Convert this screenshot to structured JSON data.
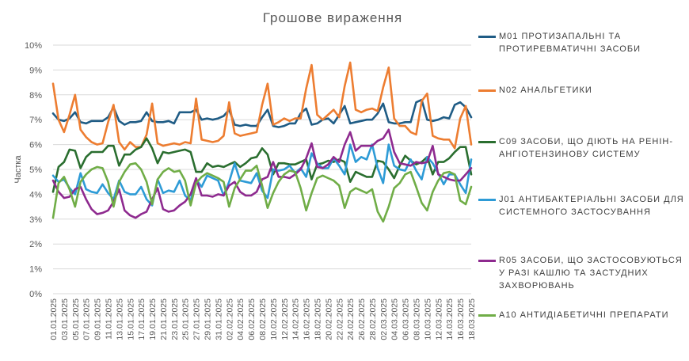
{
  "chart_data": {
    "type": "line",
    "title": "Грошове вираження",
    "ylabel": "Частка",
    "xlabel": "",
    "ylim": [
      0,
      10
    ],
    "y_ticks": [
      "0%",
      "1%",
      "2%",
      "3%",
      "4%",
      "5%",
      "6%",
      "7%",
      "8%",
      "9%",
      "10%"
    ],
    "grid": true,
    "legend_position": "right",
    "x": [
      "01.01.2025",
      "02.01.2025",
      "03.01.2025",
      "04.01.2025",
      "05.01.2025",
      "06.01.2025",
      "07.01.2025",
      "08.01.2025",
      "09.01.2025",
      "10.01.2025",
      "11.01.2025",
      "12.01.2025",
      "13.01.2025",
      "14.01.2025",
      "15.01.2025",
      "16.01.2025",
      "17.01.2025",
      "18.01.2025",
      "19.01.2025",
      "20.01.2025",
      "21.01.2025",
      "22.01.2025",
      "23.01.2025",
      "24.01.2025",
      "25.01.2025",
      "26.01.2025",
      "27.01.2025",
      "28.01.2025",
      "29.01.2025",
      "30.01.2025",
      "31.01.2025",
      "01.02.2025",
      "02.02.2025",
      "03.02.2025",
      "04.02.2025",
      "05.02.2025",
      "06.02.2025",
      "07.02.2025",
      "08.02.2025",
      "09.02.2025",
      "10.02.2025",
      "11.02.2025",
      "12.02.2025",
      "13.02.2025",
      "14.02.2025",
      "15.02.2025",
      "16.02.2025",
      "17.02.2025",
      "18.02.2025",
      "19.02.2025",
      "20.02.2025",
      "21.02.2025",
      "22.02.2025",
      "23.02.2025",
      "24.02.2025",
      "25.02.2025",
      "26.02.2025",
      "27.02.2025",
      "28.02.2025",
      "01.03.2025",
      "02.03.2025",
      "03.03.2025",
      "04.03.2025",
      "05.03.2025",
      "06.03.2025",
      "07.03.2025",
      "08.03.2025",
      "09.03.2025",
      "10.03.2025",
      "11.03.2025",
      "12.03.2025",
      "13.03.2025",
      "14.03.2025",
      "15.03.2025",
      "16.03.2025",
      "17.03.2025",
      "18.03.2025"
    ],
    "x_tick_labels": [
      "01.01.2025",
      "03.01.2025",
      "05.01.2025",
      "07.01.2025",
      "09.01.2025",
      "11.01.2025",
      "13.01.2025",
      "15.01.2025",
      "17.01.2025",
      "19.01.2025",
      "21.01.2025",
      "23.01.2025",
      "25.01.2025",
      "27.01.2025",
      "29.01.2025",
      "31.01.2025",
      "02.02.2025",
      "04.02.2025",
      "06.02.2025",
      "08.02.2025",
      "10.02.2025",
      "12.02.2025",
      "14.02.2025",
      "16.02.2025",
      "18.02.2025",
      "20.02.2025",
      "22.02.2025",
      "24.02.2025",
      "26.02.2025",
      "28.02.2025",
      "02.03.2025",
      "04.03.2025",
      "06.03.2025",
      "08.03.2025",
      "10.03.2025",
      "12.03.2025",
      "14.03.2025",
      "16.03.2025",
      "18.03.2025"
    ],
    "series": [
      {
        "name": "M01 ПРОТИЗАПАЛЬНІ ТА ПРОТИРЕВМАТИЧНІ ЗАСОБИ",
        "color": "#1f5c85",
        "values": [
          7.25,
          7.0,
          6.95,
          7.05,
          7.3,
          6.9,
          6.85,
          6.95,
          6.95,
          6.95,
          7.1,
          7.5,
          6.95,
          6.8,
          6.9,
          6.9,
          6.95,
          7.3,
          6.95,
          6.9,
          6.9,
          6.95,
          6.85,
          7.3,
          7.3,
          7.3,
          7.4,
          7.0,
          7.05,
          7.0,
          7.05,
          7.15,
          7.4,
          6.8,
          6.75,
          6.8,
          6.75,
          6.75,
          7.1,
          7.4,
          6.75,
          6.7,
          6.75,
          6.85,
          6.85,
          7.25,
          7.45,
          6.8,
          6.85,
          7.0,
          7.05,
          6.85,
          7.2,
          7.55,
          6.85,
          6.9,
          6.95,
          7.0,
          7.0,
          7.25,
          7.65,
          6.9,
          6.85,
          6.85,
          6.9,
          6.9,
          7.7,
          7.8,
          7.0,
          6.95,
          7.0,
          7.1,
          7.05,
          7.6,
          7.7,
          7.5,
          7.1
        ]
      },
      {
        "name": "N02 АНАЛЬГЕТИКИ",
        "color": "#ed7d31",
        "values": [
          8.45,
          7.0,
          6.5,
          7.2,
          8.0,
          6.6,
          6.3,
          6.1,
          6.0,
          6.05,
          6.9,
          7.6,
          6.1,
          5.8,
          6.1,
          5.9,
          5.9,
          6.4,
          7.65,
          6.05,
          5.95,
          6.0,
          6.05,
          6.0,
          6.1,
          6.05,
          7.85,
          6.2,
          6.15,
          6.1,
          6.15,
          6.35,
          7.7,
          6.45,
          6.35,
          6.4,
          6.45,
          6.5,
          7.6,
          8.45,
          6.8,
          6.9,
          7.05,
          6.95,
          7.05,
          7.05,
          8.25,
          9.2,
          7.2,
          7.0,
          7.2,
          7.4,
          7.1,
          8.35,
          9.3,
          7.4,
          7.3,
          7.4,
          7.45,
          7.35,
          8.3,
          9.1,
          7.05,
          6.75,
          6.75,
          6.5,
          6.4,
          7.75,
          8.05,
          6.35,
          6.25,
          6.2,
          6.2,
          5.85,
          7.05,
          7.55,
          6.0
        ]
      },
      {
        "name": "C09 ЗАСОБИ, ЩО ДІЮТЬ НА РЕНІН-АНГІОТЕНЗИНОВУ СИСТЕМУ",
        "color": "#2a6e2f",
        "values": [
          4.1,
          5.1,
          5.3,
          5.8,
          5.75,
          5.05,
          5.5,
          5.7,
          5.7,
          5.7,
          5.95,
          5.95,
          5.15,
          5.6,
          5.6,
          5.8,
          5.9,
          6.25,
          5.85,
          5.25,
          5.7,
          5.65,
          5.7,
          5.75,
          5.8,
          5.7,
          4.9,
          4.9,
          5.25,
          5.1,
          5.15,
          5.1,
          5.2,
          5.3,
          5.1,
          5.25,
          5.45,
          5.5,
          5.85,
          5.6,
          4.8,
          5.25,
          5.25,
          5.2,
          5.2,
          5.3,
          5.4,
          4.6,
          5.2,
          5.25,
          5.35,
          5.3,
          5.4,
          5.3,
          4.5,
          4.9,
          4.8,
          4.7,
          4.7,
          5.35,
          5.3,
          5.0,
          4.65,
          5.15,
          5.55,
          5.35,
          5.2,
          5.3,
          5.5,
          4.8,
          5.3,
          5.3,
          5.45,
          5.7,
          5.9,
          5.9,
          4.8
        ]
      },
      {
        "name": "J01 АНТИБАКТЕРІАЛЬНІ ЗАСОБИ ДЛЯ СИСТЕМНОГО ЗАСТОСУВАННЯ",
        "color": "#2e9bd6",
        "values": [
          4.75,
          4.5,
          4.6,
          4.25,
          4.0,
          4.85,
          4.2,
          4.1,
          4.05,
          4.4,
          4.05,
          3.8,
          4.55,
          4.1,
          4.0,
          4.0,
          4.3,
          3.8,
          3.55,
          4.6,
          4.05,
          4.15,
          4.1,
          4.55,
          3.95,
          3.75,
          4.6,
          4.3,
          4.75,
          4.65,
          4.55,
          3.95,
          4.5,
          5.25,
          4.55,
          4.5,
          4.45,
          4.85,
          4.15,
          3.85,
          5.0,
          4.95,
          5.0,
          5.15,
          4.85,
          5.05,
          4.7,
          5.65,
          5.25,
          5.05,
          5.05,
          5.45,
          5.15,
          4.8,
          6.0,
          5.3,
          5.5,
          5.4,
          6.0,
          5.05,
          4.45,
          6.0,
          5.15,
          5.0,
          4.95,
          5.4,
          4.95,
          4.6,
          5.5,
          5.25,
          4.85,
          4.4,
          4.8,
          4.8,
          4.4,
          4.05,
          5.4
        ]
      },
      {
        "name": "R05 ЗАСОБИ, ЩО ЗАСТОСОВУЮТЬСЯ У РАЗІ КАШЛЮ ТА ЗАСТУДНИХ ЗАХВОРЮВАНЬ",
        "color": "#8e2a8f",
        "values": [
          4.55,
          4.1,
          3.85,
          3.9,
          4.2,
          4.3,
          3.8,
          3.4,
          3.2,
          3.25,
          3.35,
          3.7,
          4.2,
          3.35,
          3.15,
          3.05,
          3.2,
          3.3,
          3.8,
          4.25,
          3.4,
          3.3,
          3.35,
          3.55,
          3.7,
          4.0,
          4.65,
          3.95,
          3.95,
          3.9,
          4.0,
          3.95,
          4.35,
          4.5,
          4.1,
          3.95,
          3.95,
          4.1,
          4.6,
          4.7,
          5.3,
          4.7,
          4.7,
          4.65,
          4.8,
          5.0,
          5.45,
          6.05,
          5.1,
          5.05,
          5.2,
          5.5,
          5.3,
          6.0,
          6.5,
          5.75,
          5.95,
          5.95,
          5.95,
          6.15,
          6.25,
          6.6,
          5.7,
          5.25,
          5.2,
          5.15,
          5.3,
          5.25,
          5.3,
          5.95,
          4.8,
          4.7,
          4.6,
          4.55,
          4.55,
          4.8,
          5.05
        ]
      },
      {
        "name": "A10 АНТИДІАБЕТИЧНІ ПРЕПАРАТИ",
        "color": "#70ad47",
        "values": [
          3.05,
          4.45,
          4.7,
          4.2,
          3.5,
          4.5,
          4.8,
          5.0,
          5.1,
          5.05,
          4.5,
          3.5,
          4.5,
          4.9,
          5.2,
          5.25,
          5.0,
          4.5,
          3.6,
          4.6,
          4.9,
          5.05,
          4.9,
          4.95,
          4.55,
          3.55,
          4.45,
          4.7,
          4.85,
          4.75,
          4.65,
          4.5,
          3.5,
          4.25,
          4.6,
          4.95,
          4.95,
          5.15,
          4.35,
          3.45,
          4.05,
          4.5,
          4.8,
          4.95,
          4.9,
          4.25,
          3.35,
          4.05,
          4.65,
          4.75,
          4.65,
          4.55,
          4.35,
          3.45,
          4.1,
          4.25,
          4.15,
          4.05,
          4.2,
          3.3,
          2.9,
          3.5,
          4.25,
          4.45,
          4.8,
          4.9,
          4.3,
          3.65,
          3.35,
          4.1,
          4.55,
          4.85,
          4.9,
          4.8,
          3.75,
          3.6,
          4.3
        ]
      }
    ]
  }
}
